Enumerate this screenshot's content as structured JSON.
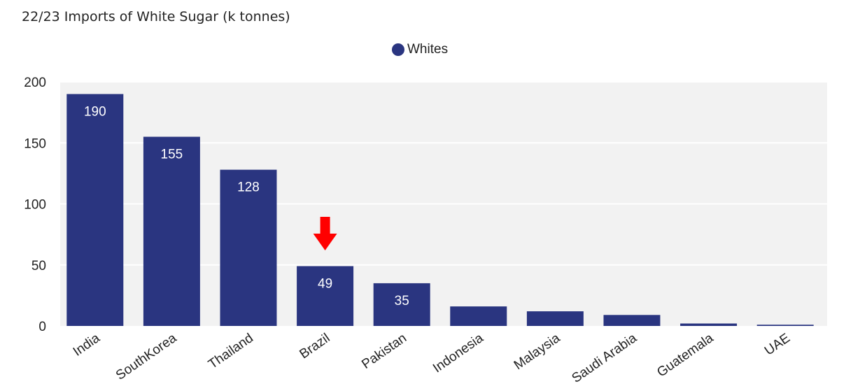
{
  "chart_data": {
    "type": "bar",
    "title": "22/23 Imports of White Sugar (k tonnes)",
    "categories": [
      "India",
      "SouthKorea",
      "Thailand",
      "Brazil",
      "Pakistan",
      "Indonesia",
      "Malaysia",
      "Saudi Arabia",
      "Guatemala",
      "UAE"
    ],
    "series": [
      {
        "name": "Whites",
        "values": [
          190,
          155,
          128,
          49,
          35,
          16,
          12,
          9,
          2,
          1
        ],
        "color": "#2a3580"
      }
    ],
    "data_labels": [
      "190",
      "155",
      "128",
      "49",
      "35",
      "",
      "",
      "",
      "",
      ""
    ],
    "ylim": [
      0,
      200
    ],
    "yticks": [
      0,
      50,
      100,
      150,
      200
    ],
    "grid": true,
    "legend_position": "top-center",
    "annotation": {
      "type": "arrow",
      "target": "Brazil",
      "color": "#ff0000"
    }
  }
}
